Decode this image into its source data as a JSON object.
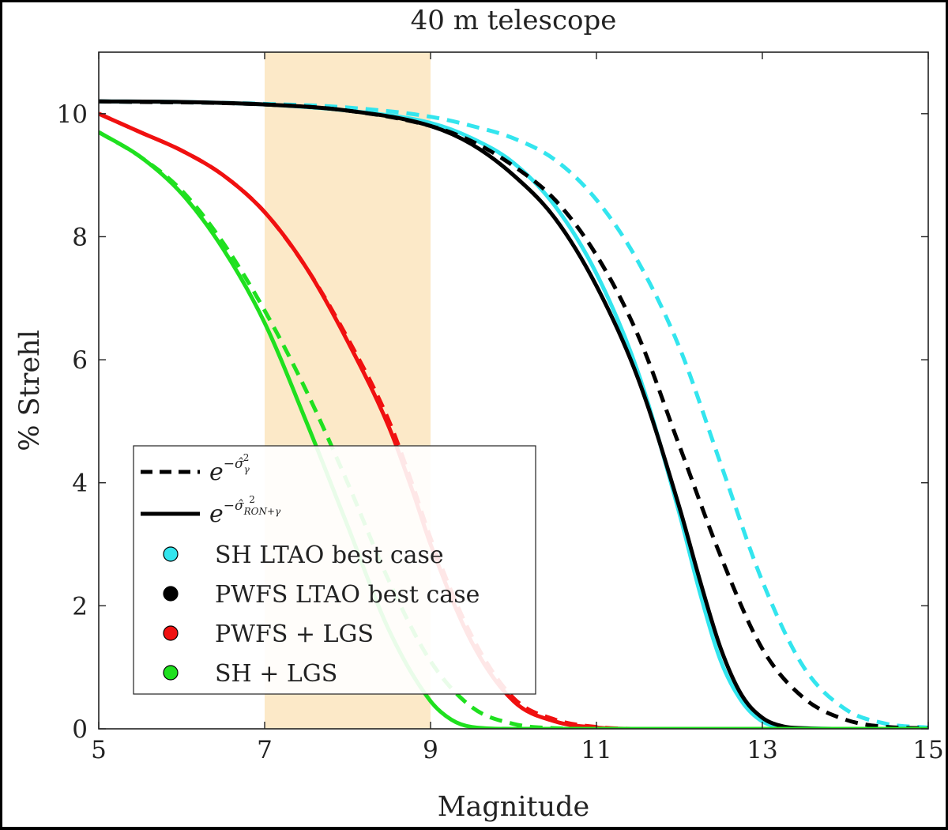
{
  "chart_data": {
    "type": "line",
    "title": "40 m telescope",
    "xlabel": "Magnitude",
    "ylabel": "% Strehl",
    "xlim": [
      5,
      15
    ],
    "ylim": [
      0,
      11
    ],
    "xticks": [
      5,
      7,
      9,
      11,
      13,
      15
    ],
    "yticks": [
      0,
      2,
      4,
      6,
      8,
      10
    ],
    "shaded_band": {
      "x0": 7,
      "x1": 9,
      "color": "#FCE9C8"
    },
    "legend": {
      "placement": "lower-left",
      "line_styles": [
        {
          "style": "dashed",
          "base": "e",
          "sup_prefix": "−",
          "sigma": "σ̂",
          "sub": "γ",
          "pow": "2"
        },
        {
          "style": "solid",
          "base": "e",
          "sup_prefix": "−",
          "sigma": "σ̂",
          "sub": "RON+γ",
          "pow": "2"
        }
      ],
      "entries": [
        {
          "label": "SH LTAO best case",
          "color": "#33E5EE"
        },
        {
          "label": "PWFS LTAO best case",
          "color": "#000000"
        },
        {
          "label": "PWFS + LGS",
          "color": "#F01010"
        },
        {
          "label": "SH + LGS",
          "color": "#1FE01F"
        }
      ]
    },
    "series": [
      {
        "name": "SH LTAO best case",
        "style": "solid",
        "color": "#33E5EE",
        "x": [
          5,
          6,
          7,
          8,
          9,
          9.5,
          10,
          10.5,
          11,
          11.5,
          12,
          12.25,
          12.5,
          12.75,
          13,
          13.25,
          13.5,
          14,
          15
        ],
        "values": [
          10.2,
          10.19,
          10.15,
          10.05,
          9.85,
          9.6,
          9.2,
          8.5,
          7.4,
          5.8,
          3.5,
          2.2,
          1.1,
          0.45,
          0.12,
          0.03,
          0.01,
          0,
          0
        ]
      },
      {
        "name": "SH LTAO best case",
        "style": "dashed",
        "color": "#33E5EE",
        "x": [
          5,
          7,
          8,
          9,
          9.5,
          10,
          10.5,
          11,
          11.5,
          12,
          12.5,
          13,
          13.5,
          14,
          14.5,
          15
        ],
        "values": [
          10.2,
          10.16,
          10.1,
          9.95,
          9.8,
          9.6,
          9.25,
          8.6,
          7.6,
          6.2,
          4.3,
          2.4,
          1.0,
          0.32,
          0.08,
          0.02
        ]
      },
      {
        "name": "PWFS LTAO best case",
        "style": "solid",
        "color": "#000000",
        "x": [
          5,
          6,
          7,
          8,
          9,
          9.5,
          10,
          10.5,
          11,
          11.5,
          12,
          12.25,
          12.5,
          12.75,
          13,
          13.25,
          13.5,
          14,
          15
        ],
        "values": [
          10.2,
          10.19,
          10.15,
          10.05,
          9.8,
          9.5,
          9.0,
          8.3,
          7.2,
          5.7,
          3.6,
          2.4,
          1.3,
          0.55,
          0.18,
          0.04,
          0.01,
          0,
          0
        ]
      },
      {
        "name": "PWFS LTAO best case",
        "style": "dashed",
        "color": "#000000",
        "x": [
          5,
          7,
          8,
          9,
          9.5,
          10,
          10.5,
          11,
          11.5,
          12,
          12.5,
          13,
          13.5,
          14,
          14.5,
          15
        ],
        "values": [
          10.2,
          10.15,
          10.05,
          9.8,
          9.55,
          9.15,
          8.6,
          7.7,
          6.4,
          4.6,
          2.8,
          1.3,
          0.5,
          0.15,
          0.03,
          0.01
        ]
      },
      {
        "name": "PWFS + LGS",
        "style": "solid",
        "color": "#F01010",
        "x": [
          5,
          5.5,
          6,
          6.5,
          7,
          7.5,
          8,
          8.5,
          8.8,
          9,
          9.5,
          10,
          10.5,
          11,
          11.5,
          12,
          15
        ],
        "values": [
          10.0,
          9.7,
          9.4,
          9.0,
          8.4,
          7.5,
          6.3,
          4.9,
          3.8,
          3.0,
          1.4,
          0.45,
          0.12,
          0.02,
          0,
          0,
          0
        ]
      },
      {
        "name": "PWFS + LGS",
        "style": "dashed",
        "color": "#F01010",
        "x": [
          5,
          5.5,
          6,
          6.5,
          7,
          7.5,
          8,
          8.5,
          8.8,
          9,
          9.5,
          10,
          10.5,
          11,
          11.5,
          12,
          15
        ],
        "values": [
          10.0,
          9.7,
          9.4,
          9.0,
          8.4,
          7.5,
          6.35,
          5.0,
          3.9,
          3.1,
          1.5,
          0.5,
          0.15,
          0.03,
          0,
          0,
          0
        ]
      },
      {
        "name": "SH + LGS",
        "style": "solid",
        "color": "#1FE01F",
        "x": [
          5,
          5.5,
          6,
          6.5,
          7,
          7.5,
          8,
          8.5,
          9,
          9.25,
          9.5,
          10,
          15
        ],
        "values": [
          9.7,
          9.3,
          8.7,
          7.8,
          6.6,
          5.0,
          3.3,
          1.6,
          0.45,
          0.15,
          0.03,
          0,
          0
        ]
      },
      {
        "name": "SH + LGS",
        "style": "dashed",
        "color": "#1FE01F",
        "x": [
          5,
          5.5,
          6,
          6.5,
          7,
          7.5,
          8,
          8.5,
          9,
          9.5,
          10,
          10.5,
          11,
          15
        ],
        "values": [
          9.7,
          9.3,
          8.75,
          7.9,
          6.8,
          5.5,
          4.0,
          2.4,
          1.1,
          0.35,
          0.08,
          0.01,
          0,
          0
        ]
      }
    ]
  }
}
